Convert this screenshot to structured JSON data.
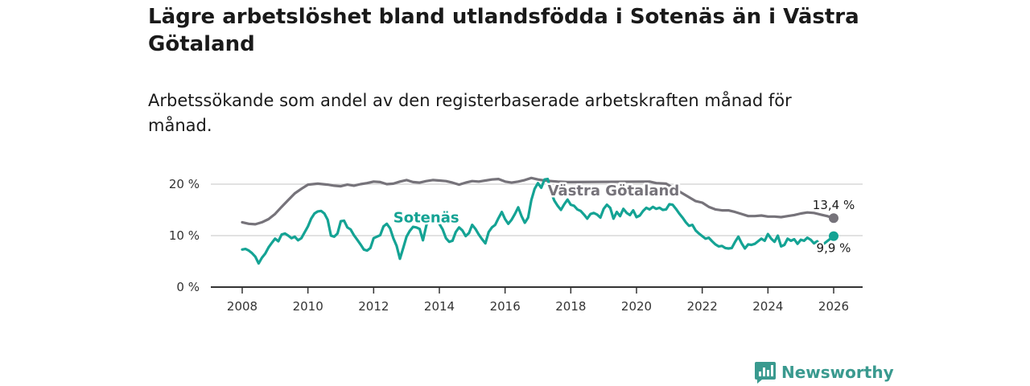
{
  "title": "Lägre arbetslöshet bland utlandsfödda i Sotenäs än i Västra Götaland",
  "subtitle": "Arbetssökande som andel av den registerbaserade arbetskraften månad för månad.",
  "brand": {
    "name": "Newsworthy",
    "icon": "newsworthy-logo-icon"
  },
  "colors": {
    "regional": "#76737a",
    "local": "#14a394",
    "grid": "#d9d9d9",
    "axis": "#333333"
  },
  "chart_data": {
    "type": "line",
    "title": "Lägre arbetslöshet bland utlandsfödda i Sotenäs än i Västra Götaland",
    "subtitle": "Arbetssökande som andel av den registerbaserade arbetskraften månad för månad.",
    "xlabel": "",
    "ylabel": "",
    "xlim": [
      2007.4,
      2027.0
    ],
    "ylim": [
      0,
      20
    ],
    "grid": true,
    "y_ticks": [
      {
        "value": 0,
        "label": "0 %"
      },
      {
        "value": 10,
        "label": "10 %"
      },
      {
        "value": 20,
        "label": "20 %"
      }
    ],
    "x_ticks": [
      {
        "value": 2008,
        "label": "2008"
      },
      {
        "value": 2010,
        "label": "2010"
      },
      {
        "value": 2012,
        "label": "2012"
      },
      {
        "value": 2014,
        "label": "2014"
      },
      {
        "value": 2016,
        "label": "2016"
      },
      {
        "value": 2018,
        "label": "2018"
      },
      {
        "value": 2020,
        "label": "2020"
      },
      {
        "value": 2022,
        "label": "2022"
      },
      {
        "value": 2024,
        "label": "2024"
      },
      {
        "value": 2026,
        "label": "2026"
      }
    ],
    "series": [
      {
        "name": "Västra Götaland",
        "color": "#76737a",
        "end_label": "13,4 %",
        "end_point": [
          2026.0,
          13.4
        ],
        "points": [
          [
            2008.0,
            12.6
          ],
          [
            2008.2,
            12.3
          ],
          [
            2008.4,
            12.2
          ],
          [
            2008.6,
            12.6
          ],
          [
            2008.8,
            13.2
          ],
          [
            2009.0,
            14.2
          ],
          [
            2009.2,
            15.6
          ],
          [
            2009.4,
            16.9
          ],
          [
            2009.6,
            18.2
          ],
          [
            2009.8,
            19.1
          ],
          [
            2010.0,
            19.9
          ],
          [
            2010.3,
            20.1
          ],
          [
            2010.6,
            19.9
          ],
          [
            2010.8,
            19.7
          ],
          [
            2011.0,
            19.6
          ],
          [
            2011.2,
            19.9
          ],
          [
            2011.4,
            19.7
          ],
          [
            2011.6,
            20.0
          ],
          [
            2011.8,
            20.2
          ],
          [
            2012.0,
            20.5
          ],
          [
            2012.2,
            20.4
          ],
          [
            2012.4,
            20.0
          ],
          [
            2012.6,
            20.1
          ],
          [
            2012.8,
            20.5
          ],
          [
            2013.0,
            20.8
          ],
          [
            2013.2,
            20.4
          ],
          [
            2013.4,
            20.3
          ],
          [
            2013.6,
            20.6
          ],
          [
            2013.8,
            20.8
          ],
          [
            2014.0,
            20.7
          ],
          [
            2014.2,
            20.6
          ],
          [
            2014.4,
            20.3
          ],
          [
            2014.6,
            19.9
          ],
          [
            2014.8,
            20.3
          ],
          [
            2015.0,
            20.6
          ],
          [
            2015.2,
            20.5
          ],
          [
            2015.4,
            20.7
          ],
          [
            2015.6,
            20.9
          ],
          [
            2015.8,
            21.0
          ],
          [
            2016.0,
            20.5
          ],
          [
            2016.2,
            20.3
          ],
          [
            2016.4,
            20.5
          ],
          [
            2016.6,
            20.8
          ],
          [
            2016.8,
            21.2
          ],
          [
            2017.0,
            20.9
          ],
          [
            2017.2,
            20.7
          ],
          [
            2017.4,
            20.6
          ],
          [
            2017.6,
            20.5
          ],
          [
            2017.9,
            20.4
          ],
          [
            2020.4,
            20.5
          ],
          [
            2020.6,
            20.2
          ],
          [
            2020.9,
            20.1
          ],
          [
            2021.8,
            16.7
          ],
          [
            2022.0,
            16.4
          ],
          [
            2022.2,
            15.6
          ],
          [
            2022.4,
            15.1
          ],
          [
            2022.6,
            14.9
          ],
          [
            2022.8,
            14.9
          ],
          [
            2023.0,
            14.6
          ],
          [
            2023.2,
            14.2
          ],
          [
            2023.4,
            13.8
          ],
          [
            2023.6,
            13.8
          ],
          [
            2023.8,
            13.9
          ],
          [
            2024.0,
            13.7
          ],
          [
            2024.2,
            13.7
          ],
          [
            2024.4,
            13.6
          ],
          [
            2024.6,
            13.8
          ],
          [
            2024.8,
            14.0
          ],
          [
            2025.0,
            14.3
          ],
          [
            2025.2,
            14.5
          ],
          [
            2025.4,
            14.4
          ],
          [
            2025.6,
            14.1
          ],
          [
            2025.8,
            13.8
          ],
          [
            2026.0,
            13.4
          ]
        ]
      },
      {
        "name": "Sotenäs",
        "color": "#14a394",
        "end_label": "9,9 %",
        "end_point": [
          2026.0,
          9.9
        ],
        "points": [
          [
            2008.0,
            7.3
          ],
          [
            2008.1,
            7.4
          ],
          [
            2008.2,
            7.1
          ],
          [
            2008.3,
            6.6
          ],
          [
            2008.4,
            5.9
          ],
          [
            2008.5,
            4.6
          ],
          [
            2008.6,
            5.7
          ],
          [
            2008.7,
            6.5
          ],
          [
            2008.8,
            7.7
          ],
          [
            2008.9,
            8.6
          ],
          [
            2009.0,
            9.4
          ],
          [
            2009.1,
            8.9
          ],
          [
            2009.2,
            10.2
          ],
          [
            2009.3,
            10.4
          ],
          [
            2009.4,
            10.0
          ],
          [
            2009.5,
            9.5
          ],
          [
            2009.6,
            9.8
          ],
          [
            2009.7,
            9.1
          ],
          [
            2009.8,
            9.5
          ],
          [
            2010.0,
            11.8
          ],
          [
            2010.1,
            13.3
          ],
          [
            2010.2,
            14.3
          ],
          [
            2010.3,
            14.7
          ],
          [
            2010.4,
            14.8
          ],
          [
            2010.5,
            14.3
          ],
          [
            2010.6,
            13.1
          ],
          [
            2010.7,
            10.0
          ],
          [
            2010.8,
            9.8
          ],
          [
            2010.9,
            10.4
          ],
          [
            2011.0,
            12.8
          ],
          [
            2011.1,
            12.9
          ],
          [
            2011.2,
            11.6
          ],
          [
            2011.3,
            11.2
          ],
          [
            2011.4,
            10.1
          ],
          [
            2011.5,
            9.2
          ],
          [
            2011.6,
            8.3
          ],
          [
            2011.7,
            7.3
          ],
          [
            2011.8,
            7.1
          ],
          [
            2011.9,
            7.6
          ],
          [
            2012.0,
            9.5
          ],
          [
            2012.1,
            9.8
          ],
          [
            2012.2,
            10.1
          ],
          [
            2012.3,
            11.8
          ],
          [
            2012.4,
            12.3
          ],
          [
            2012.5,
            11.4
          ],
          [
            2012.6,
            9.5
          ],
          [
            2012.7,
            8.0
          ],
          [
            2012.8,
            5.5
          ],
          [
            2012.9,
            7.6
          ],
          [
            2013.0,
            9.8
          ],
          [
            2013.1,
            10.9
          ],
          [
            2013.2,
            11.7
          ],
          [
            2013.3,
            11.6
          ],
          [
            2013.4,
            11.3
          ],
          [
            2013.5,
            9.1
          ],
          [
            2013.6,
            11.9
          ],
          [
            2013.7,
            14.0
          ],
          [
            2013.8,
            13.3
          ],
          [
            2014.0,
            12.3
          ],
          [
            2014.1,
            11.2
          ],
          [
            2014.2,
            9.5
          ],
          [
            2014.3,
            8.8
          ],
          [
            2014.4,
            9.0
          ],
          [
            2014.5,
            10.7
          ],
          [
            2014.6,
            11.6
          ],
          [
            2014.7,
            11.0
          ],
          [
            2014.8,
            9.9
          ],
          [
            2014.9,
            10.5
          ],
          [
            2015.0,
            12.1
          ],
          [
            2015.1,
            11.3
          ],
          [
            2015.2,
            10.2
          ],
          [
            2015.3,
            9.3
          ],
          [
            2015.4,
            8.5
          ],
          [
            2015.5,
            10.7
          ],
          [
            2015.6,
            11.6
          ],
          [
            2015.7,
            12.1
          ],
          [
            2015.8,
            13.4
          ],
          [
            2015.9,
            14.6
          ],
          [
            2016.0,
            13.2
          ],
          [
            2016.1,
            12.3
          ],
          [
            2016.2,
            13.1
          ],
          [
            2016.3,
            14.2
          ],
          [
            2016.4,
            15.5
          ],
          [
            2016.5,
            13.8
          ],
          [
            2016.6,
            12.5
          ],
          [
            2016.7,
            13.5
          ],
          [
            2016.8,
            16.9
          ],
          [
            2016.9,
            19.1
          ],
          [
            2017.0,
            20.2
          ],
          [
            2017.1,
            19.3
          ],
          [
            2017.2,
            20.9
          ],
          [
            2017.3,
            21.0
          ],
          [
            2017.4,
            18.4
          ],
          [
            2017.5,
            16.8
          ],
          [
            2017.6,
            15.8
          ],
          [
            2017.7,
            15.0
          ],
          [
            2017.8,
            16.1
          ],
          [
            2017.9,
            17.0
          ],
          [
            2018.0,
            16.0
          ],
          [
            2018.1,
            15.8
          ],
          [
            2018.2,
            15.1
          ],
          [
            2018.3,
            14.8
          ],
          [
            2018.4,
            14.1
          ],
          [
            2018.5,
            13.3
          ],
          [
            2018.6,
            14.2
          ],
          [
            2018.7,
            14.4
          ],
          [
            2018.8,
            14.1
          ],
          [
            2018.9,
            13.5
          ],
          [
            2019.0,
            15.2
          ],
          [
            2019.1,
            16.0
          ],
          [
            2019.2,
            15.4
          ],
          [
            2019.3,
            13.3
          ],
          [
            2019.4,
            14.6
          ],
          [
            2019.5,
            13.8
          ],
          [
            2019.6,
            15.2
          ],
          [
            2019.7,
            14.4
          ],
          [
            2019.8,
            14.0
          ],
          [
            2019.9,
            14.9
          ],
          [
            2020.0,
            13.6
          ],
          [
            2020.1,
            13.9
          ],
          [
            2020.2,
            14.8
          ],
          [
            2020.3,
            15.4
          ],
          [
            2020.4,
            15.1
          ],
          [
            2020.5,
            15.6
          ],
          [
            2020.6,
            15.2
          ],
          [
            2020.7,
            15.4
          ],
          [
            2020.8,
            15.0
          ],
          [
            2020.9,
            15.1
          ],
          [
            2021.0,
            16.1
          ],
          [
            2021.1,
            16.0
          ],
          [
            2021.2,
            15.2
          ],
          [
            2021.3,
            14.3
          ],
          [
            2021.4,
            13.5
          ],
          [
            2021.5,
            12.6
          ],
          [
            2021.6,
            11.9
          ],
          [
            2021.7,
            12.1
          ],
          [
            2021.8,
            11.0
          ],
          [
            2021.9,
            10.4
          ],
          [
            2022.0,
            9.9
          ],
          [
            2022.1,
            9.4
          ],
          [
            2022.2,
            9.6
          ],
          [
            2022.3,
            8.9
          ],
          [
            2022.4,
            8.3
          ],
          [
            2022.5,
            7.9
          ],
          [
            2022.6,
            8.0
          ],
          [
            2022.7,
            7.6
          ],
          [
            2022.8,
            7.5
          ],
          [
            2022.9,
            7.6
          ],
          [
            2023.0,
            8.8
          ],
          [
            2023.1,
            9.8
          ],
          [
            2023.2,
            8.5
          ],
          [
            2023.3,
            7.5
          ],
          [
            2023.4,
            8.3
          ],
          [
            2023.5,
            8.2
          ],
          [
            2023.6,
            8.4
          ],
          [
            2023.7,
            8.9
          ],
          [
            2023.8,
            9.4
          ],
          [
            2023.9,
            9.0
          ],
          [
            2024.0,
            10.3
          ],
          [
            2024.1,
            9.4
          ],
          [
            2024.2,
            8.8
          ],
          [
            2024.3,
            10.0
          ],
          [
            2024.4,
            7.9
          ],
          [
            2024.5,
            8.2
          ],
          [
            2024.6,
            9.4
          ],
          [
            2024.7,
            9.0
          ],
          [
            2024.8,
            9.3
          ],
          [
            2024.9,
            8.4
          ],
          [
            2025.0,
            9.2
          ],
          [
            2025.1,
            9.0
          ],
          [
            2025.2,
            9.6
          ],
          [
            2025.3,
            9.2
          ],
          [
            2025.4,
            8.5
          ],
          [
            2025.5,
            8.9
          ],
          [
            2025.6,
            7.9
          ],
          [
            2026.0,
            9.9
          ]
        ]
      }
    ],
    "annotations": [
      {
        "text": "Sotenäs",
        "series": "Sotenäs",
        "anchor": [
          2013.6,
          12.6
        ]
      },
      {
        "text": "Västra Götaland",
        "series": "Västra Götaland",
        "anchor": [
          2019.3,
          17.8
        ]
      }
    ]
  }
}
